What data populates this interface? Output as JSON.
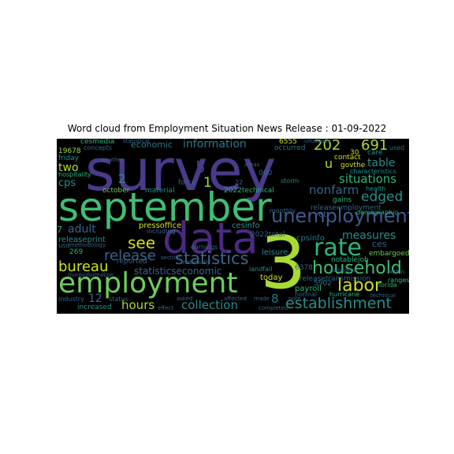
{
  "title": "Word cloud from Employment Situation News Release : 01-09-2022",
  "palette": {
    "background": "#000000",
    "dark_purple": "#471a6b",
    "purple": "#4a3a8a",
    "blue": "#37668c",
    "teal": "#26908c",
    "green": "#2fb47c",
    "light_green": "#6cce59",
    "yellow_green": "#a8db34"
  },
  "words": {
    "survey": "survey",
    "september": "september",
    "data": "data",
    "three": "3",
    "employment": "employment",
    "unemployment": "unemployment",
    "rate": "rate",
    "household": "household",
    "labor": "labor",
    "establishment": "establishment",
    "statistics": "statistics",
    "see": "see",
    "release": "release",
    "bureau": "bureau",
    "hours": "hours",
    "collection": "collection",
    "measures": "measures",
    "edged": "edged",
    "situations": "situations",
    "nonfarm": "nonfarm",
    "table": "table",
    "information": "information",
    "n202": "202",
    "n691": "691",
    "five": "5",
    "one": "1",
    "two_num": "2",
    "two": "two",
    "cps": "cps",
    "u": "u",
    "adult": "adult",
    "economic": "economic",
    "statisticseconomic": "statisticseconomic",
    "n8": "8",
    "n7": "7",
    "n12": "12",
    "n22": "22",
    "releaseprint": "releaseprint",
    "pressoffice": "pressoffice",
    "cesinfo": "cesinfo",
    "n2022total": "2022total",
    "leisure": "leisure",
    "today": "today",
    "payroll": "payroll",
    "releasetransmission": "releasetransmission",
    "notablejob": "notablejob",
    "cpsinfo": "cpsinfo",
    "n6378": "6378",
    "n5902": "5902",
    "ces": "ces",
    "embargoed": "embargoed",
    "releaseemployment": "releaseemployment",
    "et": "et",
    "gains": "gains",
    "demographic": "demographic",
    "health": "health",
    "contact": "contact",
    "govthe": "govthe",
    "characteristics": "characteristics",
    "n6555": "6555",
    "occurred": "occurred",
    "n30": "30",
    "care": "care",
    "used": "used",
    "n19678": "19678",
    "friday": "friday",
    "hospitality": "hospitality",
    "cesmedia": "cesmedia",
    "concepts": "concepts",
    "weather": "weather",
    "october": "october",
    "material": "material",
    "force": "force",
    "n2022technical": "2022technical",
    "n000": "000",
    "storm": "storm",
    "monthly": "monthly",
    "n269": "269",
    "reported": "reported",
    "including": "including",
    "methodology": "methodology",
    "usd": "usd",
    "moreinformation": "moreinformation",
    "landfall": "landfall",
    "normal": "normal",
    "hurricane": "hurricane",
    "florida": "florida",
    "ranges": "ranges",
    "within": "within",
    "industry": "industry",
    "increased": "increased",
    "status": "status",
    "affected": "affected",
    "made": "made",
    "completed": "completed",
    "note": "note",
    "asked": "asked",
    "effect": "effect",
    "earnings": "earnings",
    "nationally": "nationally",
    "section": "section",
    "estimates": "estimates",
    "technical": "technical",
    "areas": "areas",
    "unusually": "unusually",
    "statistical": "statistical"
  }
}
